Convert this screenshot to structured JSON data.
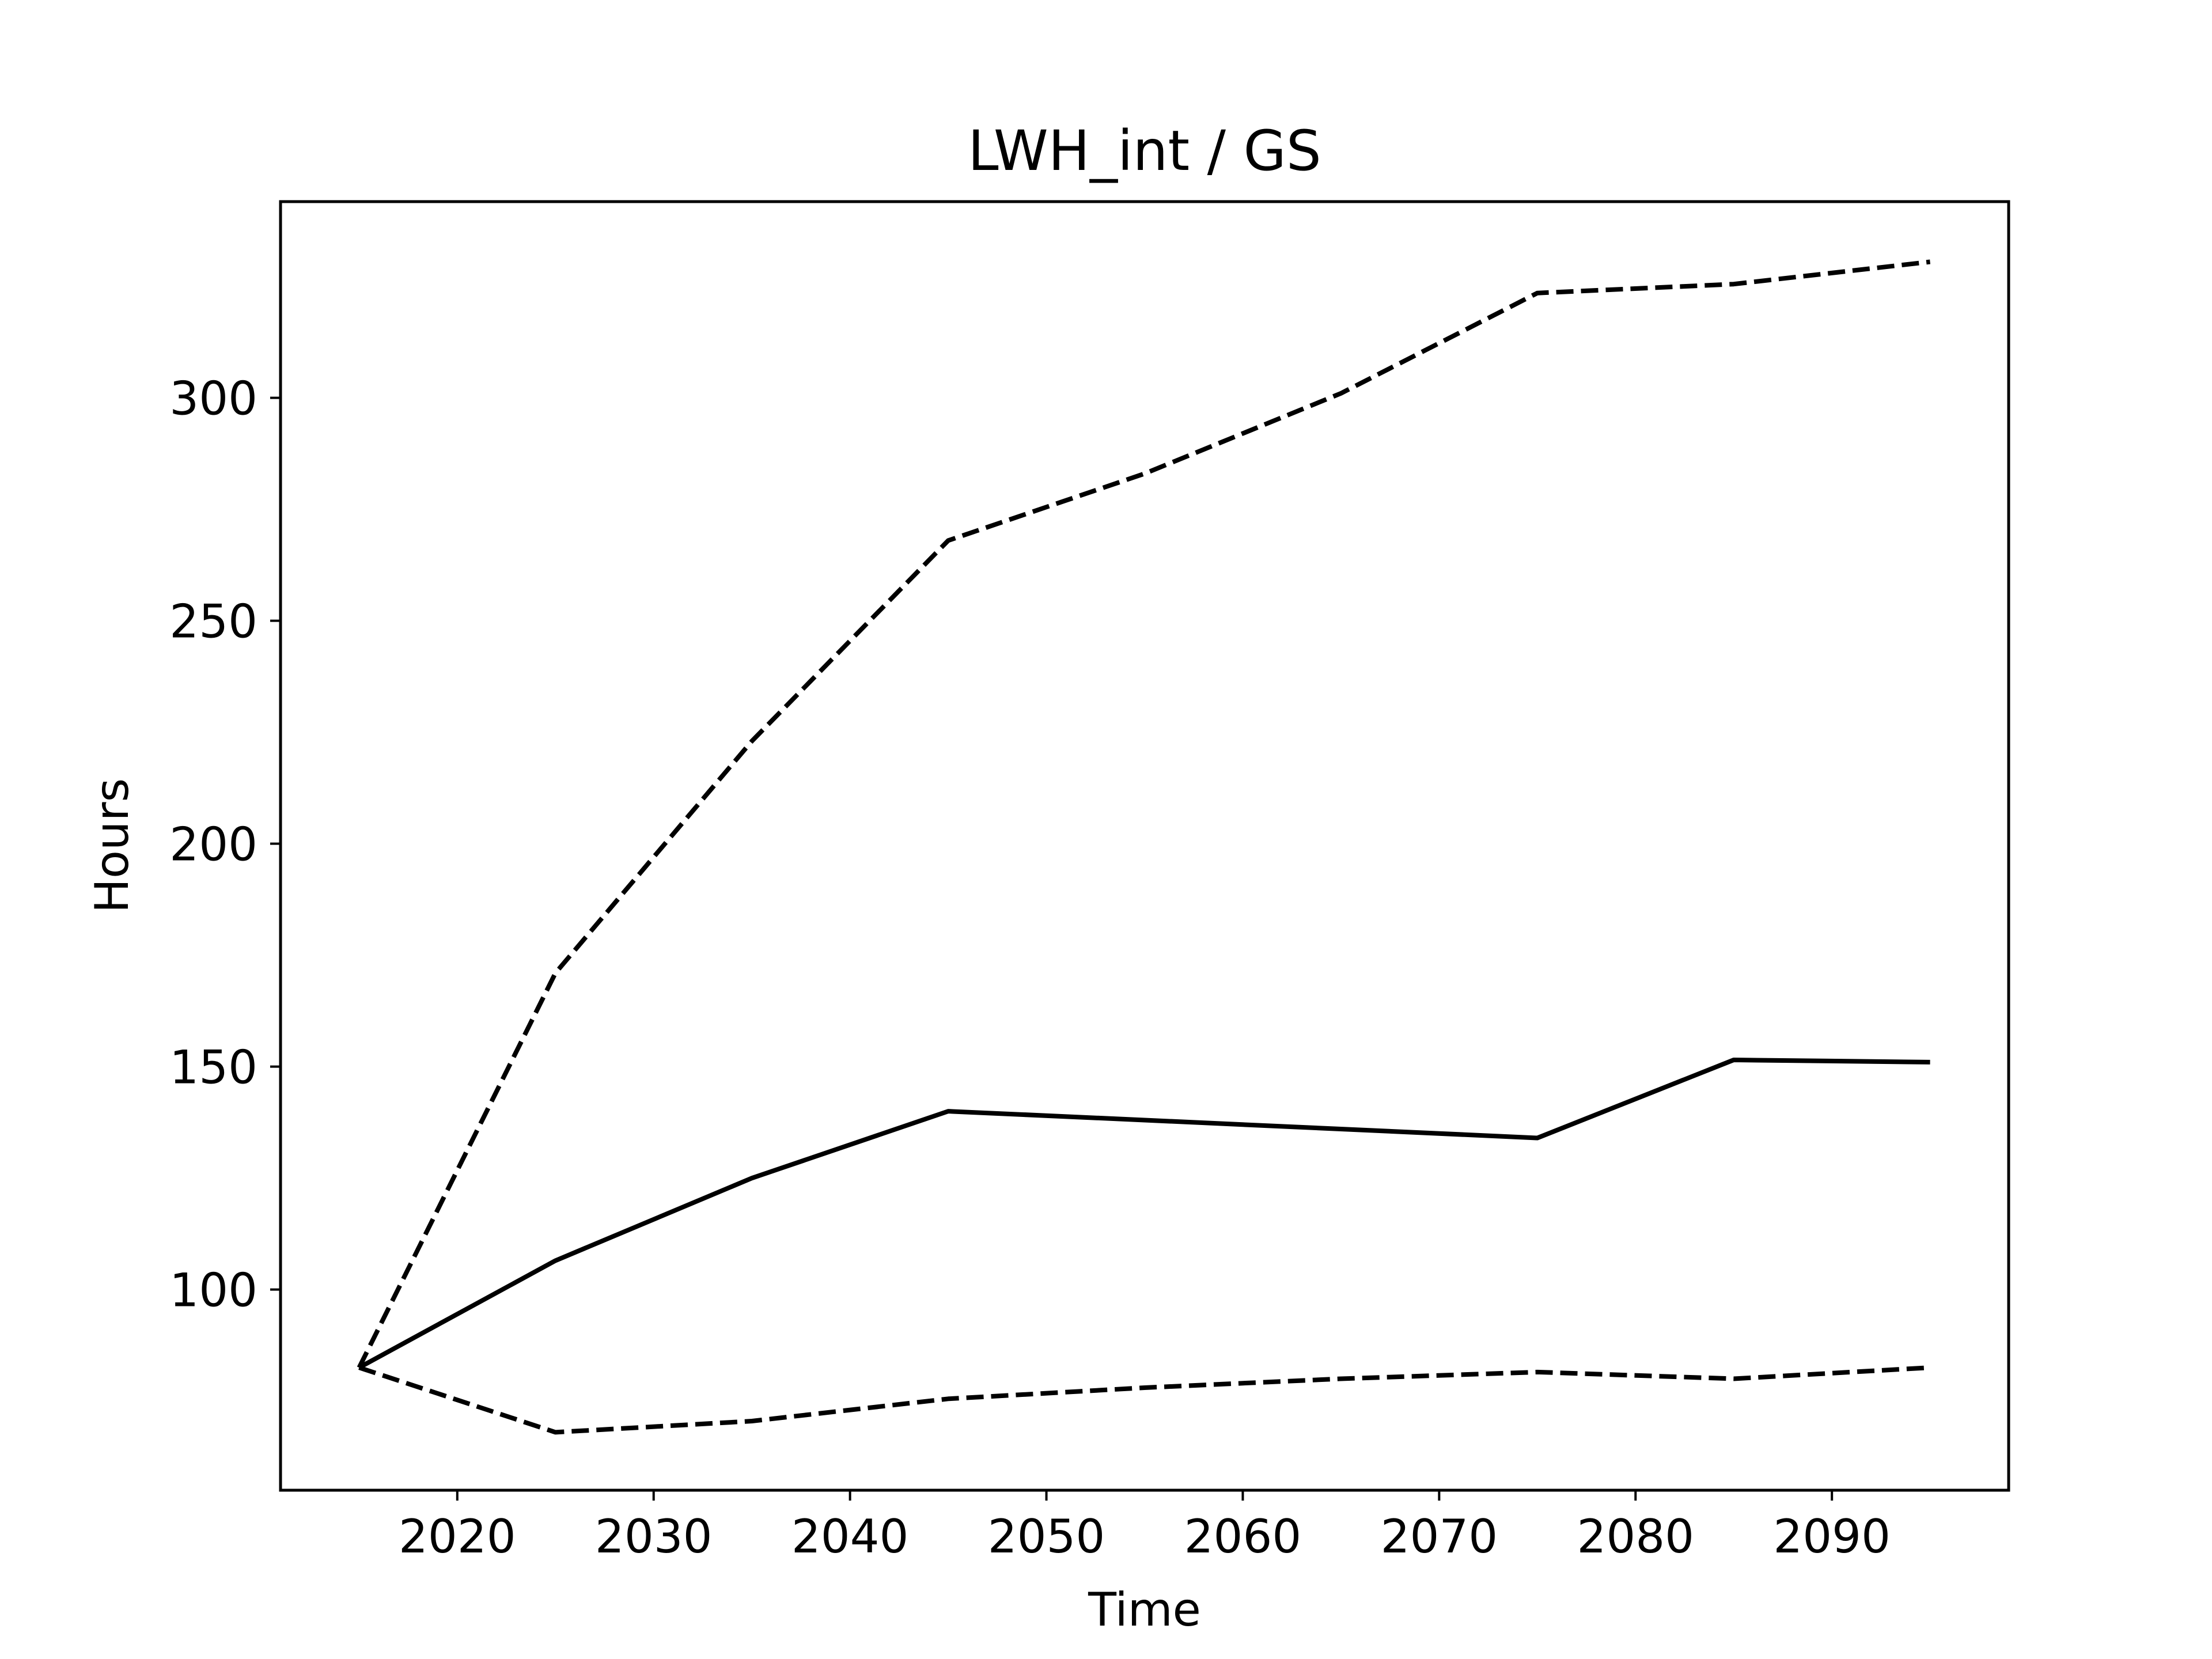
{
  "chart_data": {
    "type": "line",
    "title": "LWH_int / GS",
    "xlabel": "Time",
    "ylabel": "Hours",
    "xlim": [
      2011,
      2099
    ],
    "ylim": [
      55,
      344
    ],
    "xticks": [
      2020,
      2030,
      2040,
      2050,
      2060,
      2070,
      2080,
      2090
    ],
    "yticks": [
      100,
      150,
      200,
      250,
      300
    ],
    "grid": false,
    "legend": "none",
    "series": [
      {
        "style": "solid",
        "color": "#000000",
        "x": [
          2015,
          2025,
          2035,
          2045,
          2055,
          2065,
          2075,
          2085,
          2095
        ],
        "y": [
          82.5,
          106.5,
          125,
          140,
          138,
          136,
          134,
          151.5,
          151
        ]
      },
      {
        "style": "dashed",
        "color": "#000000",
        "x": [
          2015,
          2025,
          2035,
          2045,
          2055,
          2065,
          2075,
          2085,
          2095
        ],
        "y": [
          82.5,
          171,
          223,
          268,
          283,
          301,
          323.5,
          325.5,
          330.5
        ]
      },
      {
        "style": "dashed",
        "color": "#000000",
        "x": [
          2015,
          2025,
          2035,
          2045,
          2055,
          2065,
          2075,
          2085,
          2095
        ],
        "y": [
          82.5,
          68,
          70.5,
          75.5,
          78,
          80,
          81.5,
          80,
          82.5
        ]
      }
    ]
  }
}
